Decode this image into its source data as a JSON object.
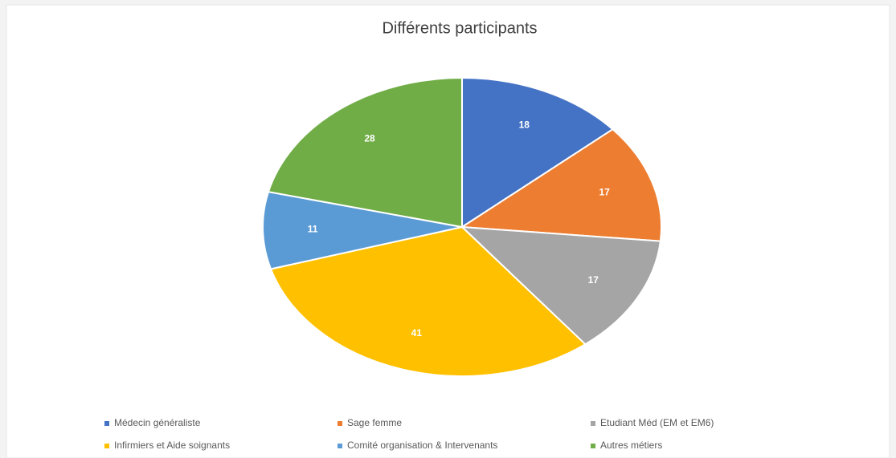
{
  "chart_data": {
    "type": "pie",
    "title": "Différents participants",
    "categories": [
      "Médecin généraliste",
      "Sage femme",
      "Etudiant Méd (EM et EM6)",
      "Infirmiers et Aide soignants",
      "Comité organisation & Intervenants",
      "Autres métiers"
    ],
    "values": [
      18,
      17,
      17,
      41,
      11,
      28
    ],
    "colors": [
      "#4472c4",
      "#ed7d31",
      "#a5a5a5",
      "#ffc000",
      "#5b9bd5",
      "#70ad47"
    ]
  }
}
